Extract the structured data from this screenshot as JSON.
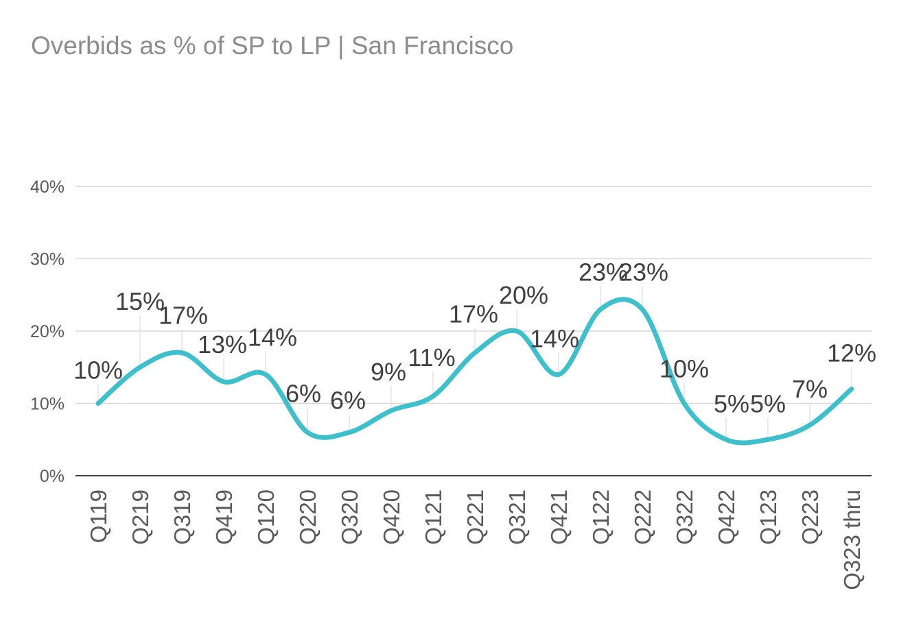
{
  "chart_data": {
    "type": "line",
    "title": "Overbids as % of SP to LP | San Francisco",
    "xlabel": "",
    "ylabel": "",
    "categories": [
      "Q119",
      "Q219",
      "Q319",
      "Q419",
      "Q120",
      "Q220",
      "Q320",
      "Q420",
      "Q121",
      "Q221",
      "Q321",
      "Q421",
      "Q122",
      "Q222",
      "Q322",
      "Q422",
      "Q123",
      "Q223",
      "Q323 thru"
    ],
    "series": [
      {
        "name": "Overbids as % of SP to LP",
        "values": [
          10,
          15,
          17,
          13,
          14,
          6,
          6,
          9,
          11,
          17,
          20,
          14,
          23,
          23,
          10,
          5,
          5,
          7,
          12
        ],
        "labels": [
          "10%",
          "15%",
          "17%",
          "13%",
          "14%",
          "6%",
          "6%",
          "9%",
          "11%",
          "17%",
          "20%",
          "14%",
          "23%",
          "23%",
          "10%",
          "5%",
          "5%",
          "7%",
          "12%"
        ]
      }
    ],
    "ylim": [
      0,
      40
    ],
    "yticks": [
      0,
      10,
      20,
      30,
      40
    ],
    "ytick_labels": [
      "0%",
      "10%",
      "20%",
      "30%",
      "40%"
    ],
    "grid": true,
    "line_color": "#3dbfcc",
    "smooth": true
  }
}
